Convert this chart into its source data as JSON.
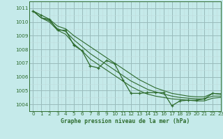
{
  "title": "Graphe pression niveau de la mer (hPa)",
  "background_color": "#c5eaea",
  "grid_major_color": "#99bbbb",
  "grid_minor_color": "#c0dcdc",
  "line_color": "#2d6b2d",
  "xlim": [
    -0.5,
    23
  ],
  "ylim": [
    1003.5,
    1011.5
  ],
  "yticks": [
    1004,
    1005,
    1006,
    1007,
    1008,
    1009,
    1010,
    1011
  ],
  "xticks": [
    0,
    1,
    2,
    3,
    4,
    5,
    6,
    7,
    8,
    9,
    10,
    11,
    12,
    13,
    14,
    15,
    16,
    17,
    18,
    19,
    20,
    21,
    22,
    23
  ],
  "series": {
    "main": [
      1010.8,
      1010.5,
      1010.2,
      1009.4,
      1009.4,
      1008.3,
      1007.9,
      1006.8,
      1006.65,
      1007.2,
      1006.95,
      1005.8,
      1004.8,
      1004.8,
      1004.85,
      1004.85,
      1004.85,
      1003.9,
      1004.25,
      1004.3,
      1004.3,
      1004.4,
      1004.8,
      1004.75
    ],
    "smooth1": [
      1010.8,
      1010.3,
      1010.2,
      1009.7,
      1009.5,
      1009.0,
      1008.6,
      1008.2,
      1007.8,
      1007.4,
      1007.0,
      1006.6,
      1006.2,
      1005.8,
      1005.5,
      1005.2,
      1005.0,
      1004.8,
      1004.7,
      1004.6,
      1004.55,
      1004.55,
      1004.8,
      1004.75
    ],
    "smooth2": [
      1010.8,
      1010.3,
      1010.1,
      1009.5,
      1009.3,
      1008.7,
      1008.2,
      1007.7,
      1007.3,
      1006.9,
      1006.5,
      1006.1,
      1005.7,
      1005.4,
      1005.1,
      1004.9,
      1004.75,
      1004.6,
      1004.5,
      1004.45,
      1004.4,
      1004.4,
      1004.6,
      1004.6
    ],
    "smooth3": [
      1010.8,
      1010.3,
      1010.0,
      1009.4,
      1009.1,
      1008.4,
      1007.9,
      1007.3,
      1006.9,
      1006.5,
      1006.1,
      1005.7,
      1005.3,
      1005.0,
      1004.75,
      1004.6,
      1004.5,
      1004.4,
      1004.35,
      1004.3,
      1004.25,
      1004.25,
      1004.45,
      1004.5
    ]
  }
}
